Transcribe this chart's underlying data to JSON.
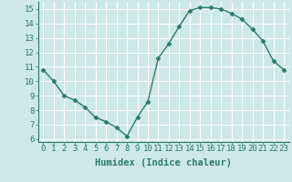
{
  "x": [
    0,
    1,
    2,
    3,
    4,
    5,
    6,
    7,
    8,
    9,
    10,
    11,
    12,
    13,
    14,
    15,
    16,
    17,
    18,
    19,
    20,
    21,
    22,
    23
  ],
  "y": [
    10.8,
    10.0,
    9.0,
    8.7,
    8.2,
    7.5,
    7.2,
    6.8,
    6.2,
    7.5,
    8.6,
    11.6,
    12.6,
    13.8,
    14.9,
    15.1,
    15.1,
    15.0,
    14.7,
    14.3,
    13.6,
    12.8,
    11.4,
    10.8
  ],
  "line_color": "#2d7a6e",
  "marker": "D",
  "marker_size": 2.5,
  "bg_color": "#cde8e8",
  "grid_color": "#ffffff",
  "xlabel": "Humidex (Indice chaleur)",
  "ylim": [
    5.8,
    15.5
  ],
  "xlim": [
    -0.5,
    23.5
  ],
  "yticks": [
    6,
    7,
    8,
    9,
    10,
    11,
    12,
    13,
    14,
    15
  ],
  "xticks": [
    0,
    1,
    2,
    3,
    4,
    5,
    6,
    7,
    8,
    9,
    10,
    11,
    12,
    13,
    14,
    15,
    16,
    17,
    18,
    19,
    20,
    21,
    22,
    23
  ],
  "tick_label_fontsize": 6.5,
  "xlabel_fontsize": 7.5,
  "tick_color": "#2d7a6e",
  "axis_color": "#2d7a6e",
  "line_width": 1.0
}
